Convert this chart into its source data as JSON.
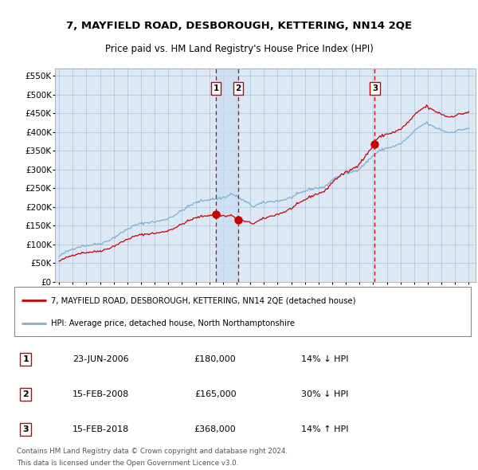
{
  "title": "7, MAYFIELD ROAD, DESBOROUGH, KETTERING, NN14 2QE",
  "subtitle": "Price paid vs. HM Land Registry's House Price Index (HPI)",
  "ylim": [
    0,
    570000
  ],
  "yticks": [
    0,
    50000,
    100000,
    150000,
    200000,
    250000,
    300000,
    350000,
    400000,
    450000,
    500000,
    550000
  ],
  "ytick_labels": [
    "£0",
    "£50K",
    "£100K",
    "£150K",
    "£200K",
    "£250K",
    "£300K",
    "£350K",
    "£400K",
    "£450K",
    "£500K",
    "£550K"
  ],
  "xlim_start": 1994.7,
  "xlim_end": 2025.5,
  "hpi_color": "#7bafd4",
  "price_color": "#cc0000",
  "background_color": "#dce9f5",
  "grid_color": "#b0c8e0",
  "transactions": [
    {
      "num": 1,
      "date_label": "23-JUN-2006",
      "date_x": 2006.48,
      "price": 180000,
      "hpi_pct": "14% ↓ HPI"
    },
    {
      "num": 2,
      "date_label": "15-FEB-2008",
      "date_x": 2008.12,
      "price": 165000,
      "hpi_pct": "30% ↓ HPI"
    },
    {
      "num": 3,
      "date_label": "15-FEB-2018",
      "date_x": 2018.12,
      "price": 368000,
      "hpi_pct": "14% ↑ HPI"
    }
  ],
  "legend_line1": "7, MAYFIELD ROAD, DESBOROUGH, KETTERING, NN14 2QE (detached house)",
  "legend_line2": "HPI: Average price, detached house, North Northamptonshire",
  "footnote1": "Contains HM Land Registry data © Crown copyright and database right 2024.",
  "footnote2": "This data is licensed under the Open Government Licence v3.0.",
  "shade_x1": 2006.48,
  "shade_x2": 2008.12
}
